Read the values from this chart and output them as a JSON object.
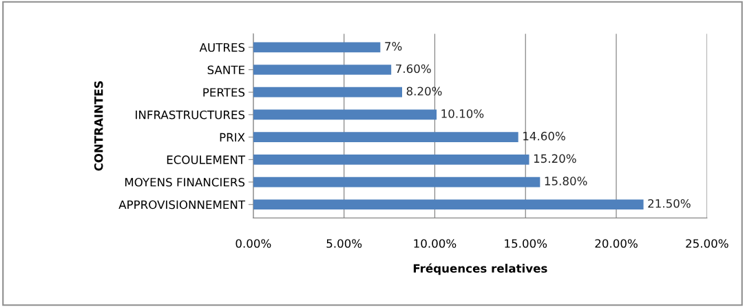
{
  "chart_data": {
    "type": "bar",
    "orientation": "horizontal",
    "xlabel": "Fréquences relatives",
    "ylabel": "CONTRAINTES",
    "categories": [
      "AUTRES",
      "SANTE",
      "PERTES",
      "INFRASTRUCTURES",
      "PRIX",
      "ECOULEMENT",
      "MOYENS FINANCIERS",
      "APPROVISIONNEMENT"
    ],
    "values": [
      7,
      7.6,
      8.2,
      10.1,
      14.6,
      15.2,
      15.8,
      21.5
    ],
    "value_labels": [
      "7%",
      "7.60%",
      "8.20%",
      "10.10%",
      "14.60%",
      "15.20%",
      "15.80%",
      "21.50%"
    ],
    "color": "#4f81bd",
    "xlim": [
      0,
      25
    ],
    "xticks": [
      {
        "value": 0,
        "label": "0.00%"
      },
      {
        "value": 5,
        "label": "5.00%"
      },
      {
        "value": 10,
        "label": "10.00%"
      },
      {
        "value": 15,
        "label": "15.00%"
      },
      {
        "value": 20,
        "label": "20.00%"
      },
      {
        "value": 25,
        "label": "25.00%"
      }
    ],
    "grid": "x"
  }
}
